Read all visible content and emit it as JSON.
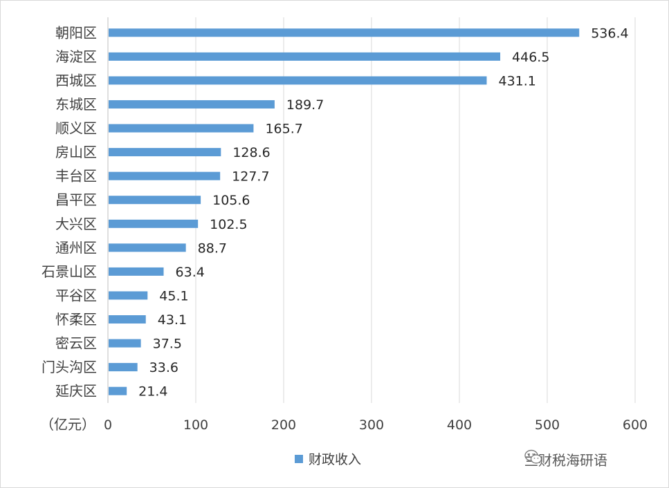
{
  "chart_data": {
    "type": "bar",
    "orientation": "horizontal",
    "categories": [
      "朝阳区",
      "海淀区",
      "西城区",
      "东城区",
      "顺义区",
      "房山区",
      "丰台区",
      "昌平区",
      "大兴区",
      "通州区",
      "石景山区",
      "平谷区",
      "怀柔区",
      "密云区",
      "门头沟区",
      "延庆区"
    ],
    "series": [
      {
        "name": "财政收入",
        "values": [
          536.4,
          446.5,
          431.1,
          189.7,
          165.7,
          128.6,
          127.7,
          105.6,
          102.5,
          88.7,
          63.4,
          45.1,
          43.1,
          37.5,
          33.6,
          21.4
        ],
        "labels": [
          "536.4",
          "446.5",
          "431.1",
          "189.7",
          "165.7",
          "128.6",
          "127.7",
          "105.6",
          "102.5",
          "88.7",
          "63.4",
          "45.1",
          "43.1",
          "37.5",
          "33.6",
          "21.4"
        ],
        "color": "#5b9bd5"
      }
    ],
    "xlim": [
      0,
      600
    ],
    "xticks": [
      "0",
      "100",
      "200",
      "300",
      "400",
      "500",
      "600"
    ],
    "unit_label": "（亿元）",
    "grid": true,
    "legend_position": "bottom"
  },
  "watermark": {
    "text": "兰财税海研语",
    "icon": "wechat-icon"
  }
}
